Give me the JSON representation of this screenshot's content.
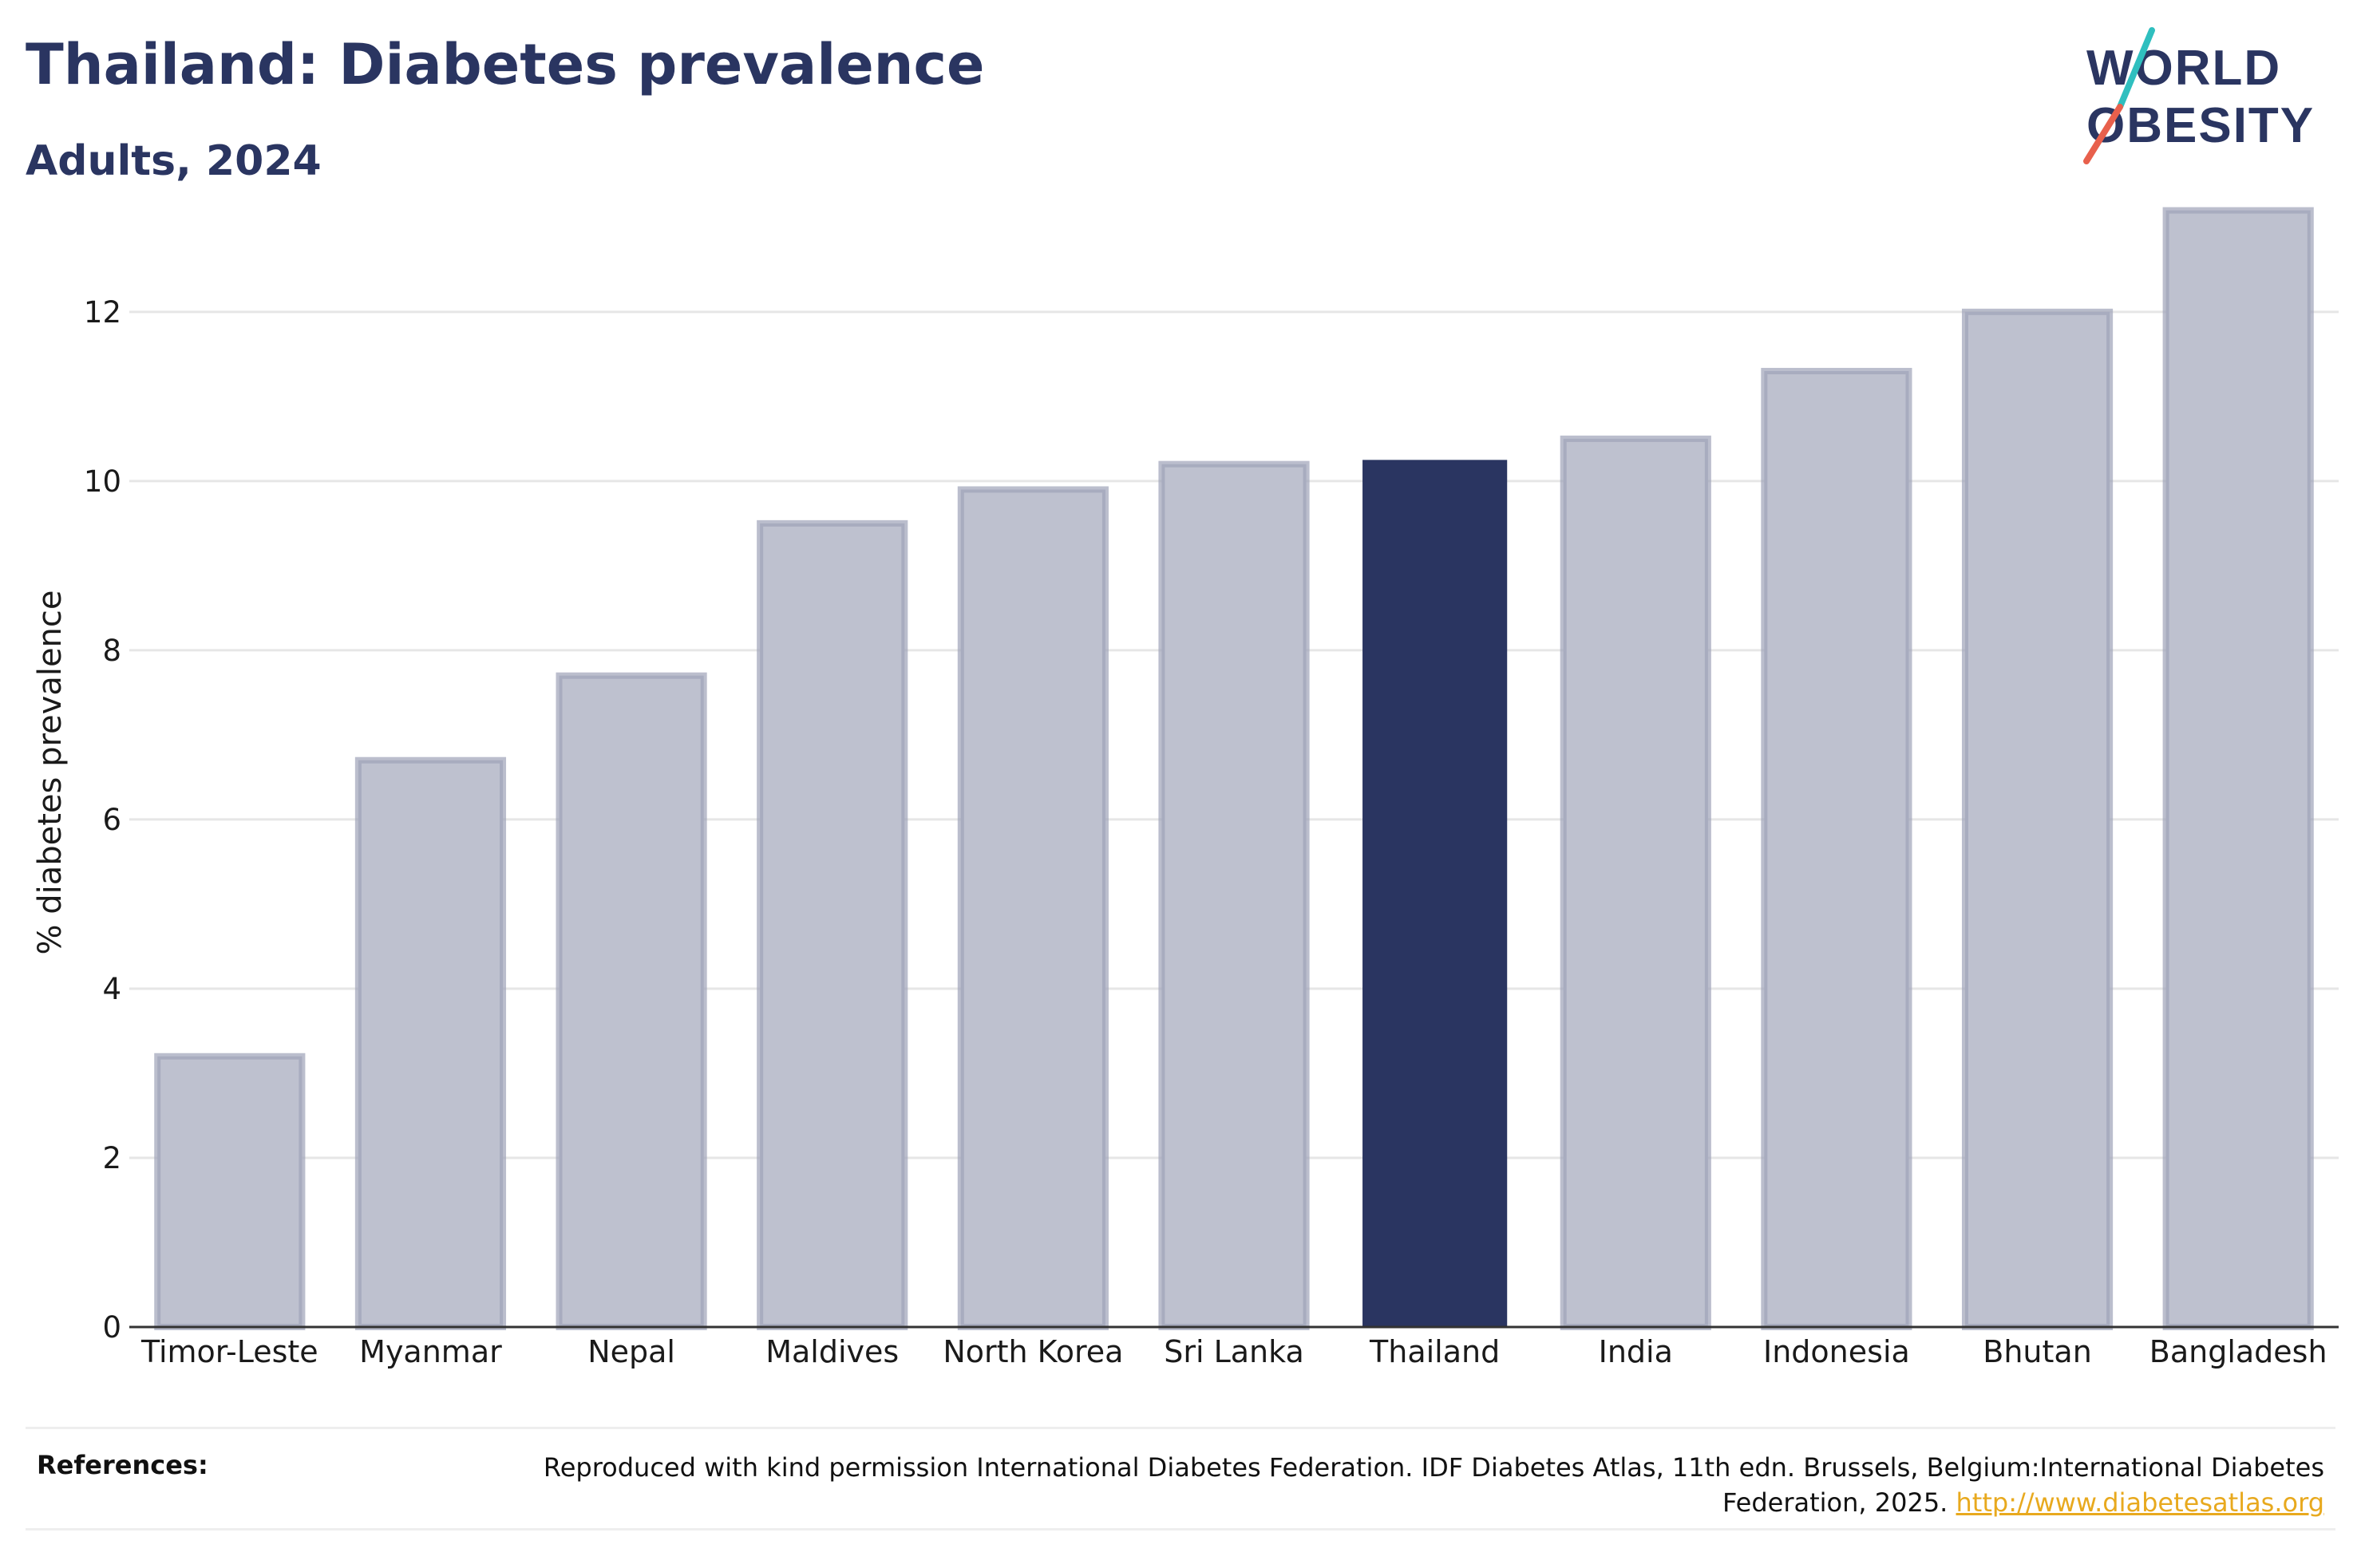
{
  "header": {
    "title": "Thailand: Diabetes prevalence",
    "subtitle": "Adults, 2024"
  },
  "logo": {
    "line1": "WORLD",
    "line2": "OBESITY",
    "accent_top": "#2fbfbf",
    "accent_bottom": "#e8604c"
  },
  "colors": {
    "bar": "#bec1cf",
    "bar_stroke": "#9ea3b8",
    "highlight": "#2a3561",
    "grid": "#e6e6e6",
    "axis": "#333333"
  },
  "chart_data": {
    "type": "bar",
    "title": "Thailand: Diabetes prevalence",
    "subtitle": "Adults, 2024",
    "xlabel": "",
    "ylabel": "% diabetes prevalence",
    "ylim": [
      0,
      13.8
    ],
    "yticks": [
      0,
      2,
      4,
      6,
      8,
      10,
      12
    ],
    "grid": true,
    "highlight": "Thailand",
    "categories": [
      "Timor-Leste",
      "Myanmar",
      "Nepal",
      "Maldives",
      "North Korea",
      "Sri Lanka",
      "Thailand",
      "India",
      "Indonesia",
      "Bhutan",
      "Bangladesh"
    ],
    "values": [
      3.2,
      6.7,
      7.7,
      9.5,
      9.9,
      10.2,
      10.25,
      10.5,
      11.3,
      12.0,
      13.2
    ]
  },
  "footer": {
    "references_label": "References:",
    "reference_text": "Reproduced with kind permission International Diabetes Federation. IDF Diabetes Atlas, 11th edn. Brussels, Belgium:International Diabetes Federation, 2025.",
    "reference_link": "http://www.diabetesatlas.org"
  }
}
